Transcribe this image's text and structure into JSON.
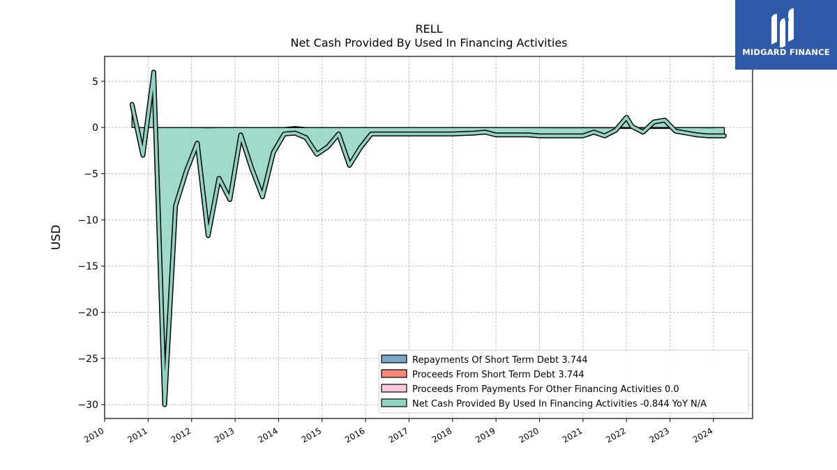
{
  "chart_data": {
    "type": "area",
    "title": "RELL",
    "subtitle": "Net Cash Provided By Used In Financing Activities",
    "xlabel": "",
    "ylabel": "USD",
    "xlim": [
      2010,
      2024.9
    ],
    "ylim": [
      -31.5,
      7.7
    ],
    "x_ticks": [
      2010,
      2011,
      2012,
      2013,
      2014,
      2015,
      2016,
      2017,
      2018,
      2019,
      2020,
      2021,
      2022,
      2023,
      2024
    ],
    "y_ticks": [
      5,
      0,
      -5,
      -10,
      -15,
      -20,
      -25,
      -30
    ],
    "y_tick_labels": [
      "5",
      "0",
      "−5",
      "−10",
      "−15",
      "−20",
      "−25",
      "−30"
    ],
    "grid": true,
    "legend_position": "lower-right",
    "series": [
      {
        "name": "Repayments Of Short Term Debt",
        "legend_value": "3.744",
        "color": "#7aa6c8",
        "x": [],
        "values": []
      },
      {
        "name": "Proceeds From Short Term Debt",
        "legend_value": "3.744",
        "color": "#f7897a",
        "x": [],
        "values": []
      },
      {
        "name": "Proceeds From Payments For Other Financing Activities",
        "legend_value": "0.0",
        "color": "#f8c8dc",
        "x": [
          2011.88,
          2012.13,
          2012.38,
          2012.63,
          2012.88,
          2013.13,
          2013.38,
          2013.63,
          2013.88,
          2014.13,
          2014.38,
          2014.63,
          2014.88,
          2015.5,
          2016.5,
          2017.5,
          2018.5,
          2019.5,
          2020.5,
          2021.5,
          2022.0,
          2022.5,
          2023.0,
          2023.38,
          2023.63,
          2023.88,
          2024.13,
          2024.25
        ],
        "values": [
          0.0,
          0.0,
          -0.1,
          0.0,
          0.0,
          0.0,
          0.0,
          0.0,
          0.0,
          0.0,
          0.1,
          0.0,
          0.0,
          0.0,
          0.0,
          0.0,
          0.0,
          0.0,
          -0.1,
          -0.1,
          -0.1,
          -0.1,
          -0.1,
          0.0,
          0.0,
          -0.1,
          0.0,
          0.0
        ]
      },
      {
        "name": "Net Cash Provided By Used In Financing Activities",
        "legend_value": "-0.844 YoY N/A",
        "color": "#8fd3c3",
        "x": [
          2010.63,
          2010.88,
          2011.13,
          2011.38,
          2011.63,
          2011.88,
          2012.13,
          2012.38,
          2012.63,
          2012.88,
          2013.13,
          2013.38,
          2013.63,
          2013.88,
          2014.13,
          2014.38,
          2014.63,
          2014.88,
          2015.13,
          2015.38,
          2015.63,
          2015.88,
          2016.13,
          2016.5,
          2017.0,
          2017.5,
          2018.0,
          2018.5,
          2018.75,
          2019.0,
          2019.5,
          2019.75,
          2020.0,
          2020.5,
          2021.0,
          2021.25,
          2021.5,
          2021.75,
          2022.0,
          2022.13,
          2022.38,
          2022.63,
          2022.88,
          2023.13,
          2023.38,
          2023.63,
          2023.88,
          2024.13,
          2024.25
        ],
        "values": [
          2.5,
          -3.0,
          6.0,
          -30.0,
          -8.5,
          -4.7,
          -1.7,
          -11.7,
          -5.5,
          -7.8,
          -0.8,
          -4.4,
          -7.5,
          -2.7,
          -0.7,
          -0.6,
          -1.1,
          -2.9,
          -2.1,
          -0.7,
          -4.1,
          -2.2,
          -0.7,
          -0.7,
          -0.7,
          -0.7,
          -0.7,
          -0.6,
          -0.5,
          -0.8,
          -0.8,
          -0.8,
          -0.9,
          -0.9,
          -0.9,
          -0.5,
          -0.9,
          -0.3,
          1.1,
          0.1,
          -0.5,
          0.6,
          0.8,
          -0.4,
          -0.6,
          -0.8,
          -0.9,
          -0.9,
          -0.9
        ]
      }
    ]
  },
  "logo": {
    "text": "MIDGARD FINANCE",
    "background": "#2f5aa8"
  }
}
